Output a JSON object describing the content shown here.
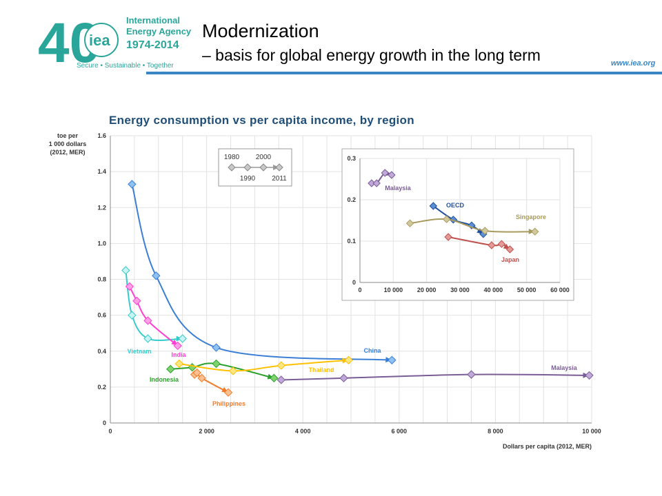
{
  "header": {
    "title": "Modernization",
    "subtitle": "– basis for global energy growth in the long term",
    "website": "www.iea.org",
    "logo": {
      "number": "40",
      "acronym": "iea",
      "org_name_line1": "International",
      "org_name_line2": "Energy Agency",
      "years": "1974-2014",
      "tagline": "Secure • Sustainable • Together"
    },
    "accent_color": "#3a86c4",
    "logo_color": "#2aa59a"
  },
  "chart_data": [
    {
      "type": "line",
      "title": "Energy consumption vs per capita income, by region",
      "xlabel": "Dollars per capita (2012, MER)",
      "ylabel": "toe per 1 000 dollars (2012, MER)",
      "ylabel_lines": [
        "toe per",
        "1 000 dollars",
        "(2012, MER)"
      ],
      "xlim": [
        0,
        10000
      ],
      "ylim": [
        0,
        1.6
      ],
      "xticks": [
        0,
        2000,
        4000,
        6000,
        8000,
        10000
      ],
      "xtick_labels": [
        "0",
        "2 000",
        "4 000",
        "6 000",
        "8 000",
        "10 000"
      ],
      "yticks": [
        0,
        0.2,
        0.4,
        0.6,
        0.8,
        1.0,
        1.2,
        1.4,
        1.6
      ],
      "ytick_labels": [
        "0",
        "0.2",
        "0.4",
        "0.6",
        "0.8",
        "1.0",
        "1.2",
        "1.4",
        "1.6"
      ],
      "grid": true,
      "legend_years": {
        "top": [
          "1980",
          "2000"
        ],
        "bottom": [
          "1990",
          "2011"
        ]
      },
      "series": [
        {
          "name": "China",
          "color": "#3a7fd5",
          "marker": "#8fc2f0",
          "x": [
            450,
            950,
            2200,
            5850
          ],
          "y": [
            1.33,
            0.82,
            0.42,
            0.35
          ]
        },
        {
          "name": "Vietnam",
          "color": "#33cccc",
          "marker": "#c8f4f4",
          "x": [
            320,
            450,
            780,
            1500
          ],
          "y": [
            0.85,
            0.6,
            0.47,
            0.47
          ]
        },
        {
          "name": "India",
          "color": "#ff3fd2",
          "marker": "#ff9fe6",
          "x": [
            400,
            550,
            780,
            1400
          ],
          "y": [
            0.76,
            0.68,
            0.57,
            0.43
          ]
        },
        {
          "name": "Indonesia",
          "color": "#2ca02c",
          "marker": "#7fd36f",
          "x": [
            1250,
            1700,
            2200,
            3400
          ],
          "y": [
            0.3,
            0.31,
            0.33,
            0.25
          ]
        },
        {
          "name": "Thailand",
          "color": "#ffc000",
          "marker": "#ffe680",
          "x": [
            1430,
            2550,
            3550,
            4950
          ],
          "y": [
            0.33,
            0.29,
            0.32,
            0.35
          ]
        },
        {
          "name": "Philippines",
          "color": "#f07c2a",
          "marker": "#fbc090",
          "x": [
            1750,
            1800,
            1900,
            2450
          ],
          "y": [
            0.27,
            0.28,
            0.25,
            0.17
          ]
        },
        {
          "name": "Malaysia",
          "color": "#7a5c96",
          "marker": "#c0a8d8",
          "x": [
            3550,
            4850,
            7500,
            9950
          ],
          "y": [
            0.24,
            0.25,
            0.27,
            0.265
          ]
        }
      ]
    },
    {
      "type": "line",
      "title": "",
      "xlim": [
        0,
        60000
      ],
      "ylim": [
        0,
        0.3
      ],
      "xticks": [
        0,
        10000,
        20000,
        30000,
        40000,
        50000,
        60000
      ],
      "xtick_labels": [
        "0",
        "10 000",
        "20 000",
        "30 000",
        "40 000",
        "50 000",
        "60 000"
      ],
      "yticks": [
        0,
        0.1,
        0.2,
        0.3
      ],
      "ytick_labels": [
        "0",
        "0.1",
        "0.2",
        "0.3"
      ],
      "grid": true,
      "series": [
        {
          "name": "Malaysia",
          "color": "#7a5c96",
          "marker": "#c0a8d8",
          "x": [
            3500,
            5000,
            7500,
            9500
          ],
          "y": [
            0.24,
            0.24,
            0.265,
            0.26
          ]
        },
        {
          "name": "OECD",
          "color": "#1f4e9c",
          "marker": "#5b8fd6",
          "x": [
            22000,
            28000,
            33500,
            37000
          ],
          "y": [
            0.185,
            0.152,
            0.138,
            0.117
          ]
        },
        {
          "name": "Singapore",
          "color": "#a89a5c",
          "marker": "#d2c89e",
          "x": [
            15000,
            26000,
            37500,
            52500
          ],
          "y": [
            0.143,
            0.153,
            0.125,
            0.123
          ]
        },
        {
          "name": "Japan",
          "color": "#c0504d",
          "marker": "#e39a98",
          "x": [
            26500,
            39500,
            42500,
            45000
          ],
          "y": [
            0.11,
            0.09,
            0.093,
            0.08
          ]
        }
      ]
    }
  ]
}
